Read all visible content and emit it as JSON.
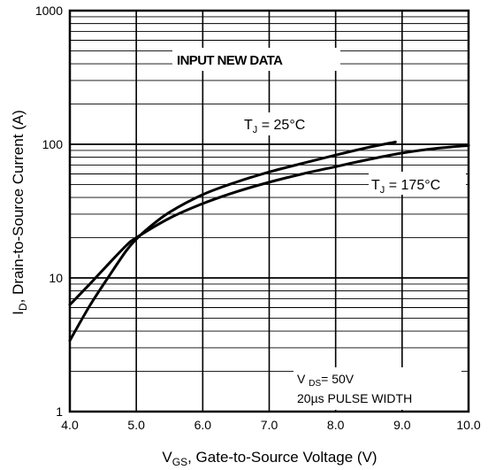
{
  "chart_data": {
    "type": "line",
    "title": "",
    "x_scale": "linear",
    "y_scale": "log",
    "xlim": [
      4.0,
      10.0
    ],
    "ylim": [
      1,
      1000
    ],
    "grid": true,
    "x_ticks": [
      4.0,
      5.0,
      6.0,
      7.0,
      8.0,
      9.0,
      10.0
    ],
    "x_tick_labels": [
      "4.0",
      "5.0",
      "6.0",
      "7.0",
      "8.0",
      "9.0",
      "10.0"
    ],
    "y_ticks": [
      1,
      10,
      100,
      1000
    ],
    "y_tick_labels": [
      "1",
      "10",
      "100",
      "1000"
    ],
    "xlabel": {
      "main": "V",
      "sub": "GS",
      "rest": ", Gate-to-Source Voltage (V)"
    },
    "ylabel": {
      "main": "I",
      "sub": "D",
      "rest": ",  Drain-to-Source Current (A)"
    },
    "series": [
      {
        "label_main": "T",
        "label_sub": "J",
        "label_rest": " = 25°C",
        "x": [
          4.0,
          4.3,
          4.6,
          4.85,
          5.0,
          5.2,
          5.5,
          6.0,
          6.5,
          7.0,
          7.5,
          8.0,
          8.5,
          8.9
        ],
        "y": [
          3.4,
          6.2,
          10.5,
          16.0,
          19.5,
          24.0,
          31.0,
          42.0,
          52.0,
          62.0,
          72.0,
          83.0,
          95.0,
          104.0
        ]
      },
      {
        "label_main": "T",
        "label_sub": "J",
        "label_rest": " = 175°C",
        "x": [
          4.0,
          4.3,
          4.6,
          4.85,
          5.0,
          5.5,
          6.0,
          6.5,
          7.0,
          7.5,
          8.0,
          8.5,
          9.0,
          9.5,
          10.0
        ],
        "y": [
          6.3,
          9.0,
          13.0,
          17.5,
          20.0,
          28.0,
          36.0,
          44.0,
          52.0,
          60.0,
          68.0,
          77.0,
          86.0,
          93.0,
          98.0
        ]
      }
    ],
    "annotations": {
      "input_new_data": "INPUT NEW DATA",
      "vds_main": "V ",
      "vds_sub": "DS",
      "vds_rest": "= 50V",
      "pulse_width": "20µs PULSE WIDTH"
    }
  }
}
